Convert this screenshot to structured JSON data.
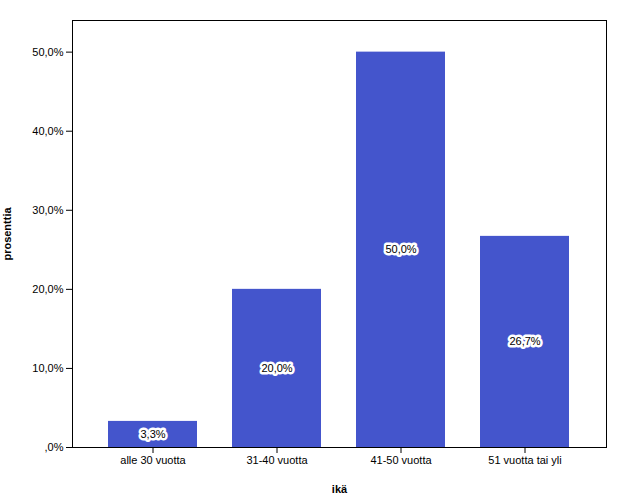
{
  "chart_data": {
    "type": "bar",
    "categories": [
      "alle 30 vuotta",
      "31-40 vuotta",
      "41-50 vuotta",
      "51 vuotta tai yli"
    ],
    "values": [
      3.3,
      20.0,
      50.0,
      26.7
    ],
    "value_labels": [
      "3,3%",
      "20,0%",
      "50,0%",
      "26,7%"
    ],
    "data_labels": true,
    "color": "#4455CC",
    "xlabel": "ikä",
    "ylabel": "prosenttia",
    "ylim": [
      0,
      54
    ],
    "yticks": [
      {
        "value": 0,
        "label": ",0%"
      },
      {
        "value": 10,
        "label": "10,0%"
      },
      {
        "value": 20,
        "label": "20,0%"
      },
      {
        "value": 30,
        "label": "30,0%"
      },
      {
        "value": 40,
        "label": "40,0%"
      },
      {
        "value": 50,
        "label": "50,0%"
      }
    ],
    "grid": false
  }
}
